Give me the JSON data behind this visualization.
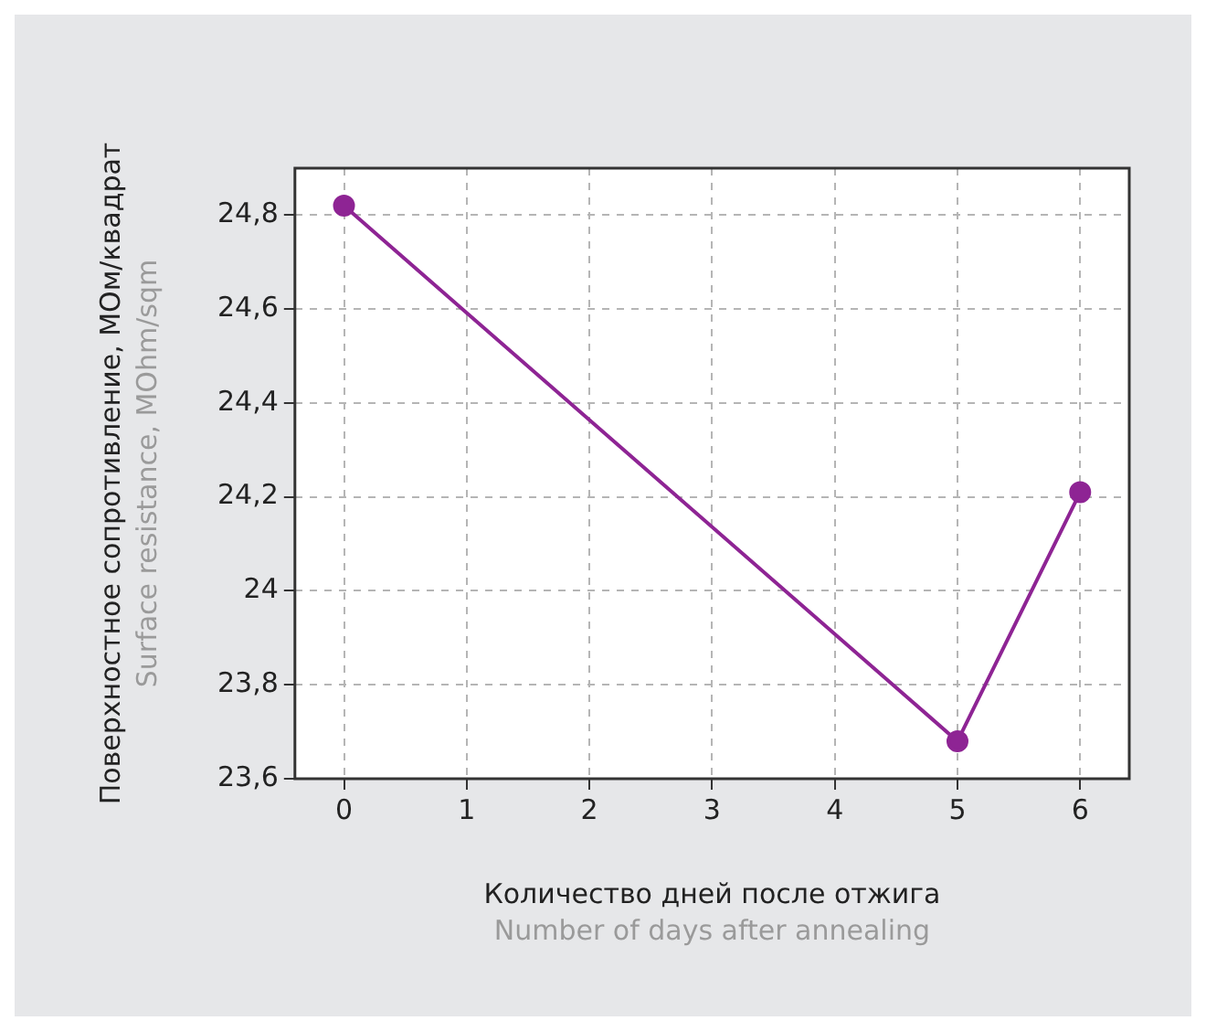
{
  "chart_data": {
    "type": "line",
    "xlabel": "Количество дней после отжига",
    "ylabel": "Поверхностное сопротивление, МОм/квадрат",
    "annotations": [
      "Number of days after annealing",
      "Surface resistance, MOhm/sqm"
    ],
    "x": [
      0,
      5,
      6
    ],
    "series": [
      {
        "color": "#8e2494",
        "values": [
          24.82,
          23.68,
          24.21
        ]
      }
    ],
    "xlim": [
      -0.4,
      6.4
    ],
    "xticks": [
      0,
      1,
      2,
      3,
      4,
      5,
      6
    ],
    "ylim": [
      23.6,
      24.9
    ],
    "yticks": [
      {
        "value": 23.6,
        "label": "23,6"
      },
      {
        "value": 23.8,
        "label": "23,8"
      },
      {
        "value": 24,
        "label": "24"
      },
      {
        "value": 24.2,
        "label": "24,2"
      },
      {
        "value": 24.4,
        "label": "24,4"
      },
      {
        "value": 24.6,
        "label": "24,6"
      },
      {
        "value": 24.8,
        "label": "24,8"
      }
    ],
    "grid": true,
    "marker": "circle",
    "line_style": "solid",
    "legend": false
  }
}
